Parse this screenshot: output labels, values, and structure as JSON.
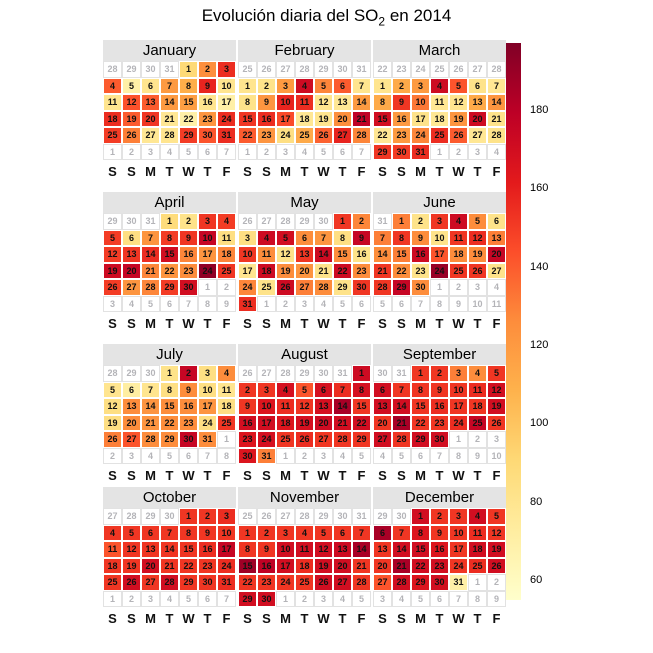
{
  "title": {
    "prefix": "Evolución diaria del SO",
    "sub": "2",
    "suffix": " en 2014"
  },
  "weekday_labels": [
    "S",
    "S",
    "M",
    "T",
    "W",
    "T",
    "F"
  ],
  "colorbar": {
    "ticks": [
      180,
      160,
      140,
      120,
      100,
      80,
      60
    ],
    "min": 55,
    "max": 197,
    "palette": [
      "#ffffcc",
      "#ffeda0",
      "#fed976",
      "#feb24c",
      "#fd8d3c",
      "#fc4e2a",
      "#e31a1c",
      "#bd0026",
      "#800026"
    ]
  },
  "chart_data": {
    "type": "heatmap",
    "title": "Evolución diaria del SO2 en 2014",
    "legend_position": "right",
    "value_range": [
      55,
      197
    ],
    "months": [
      {
        "name": "January",
        "prev_days": [
          28,
          29,
          30,
          31
        ],
        "next_days": [
          1,
          2,
          3,
          4,
          5,
          6,
          7
        ],
        "values": [
          90,
          125,
          155,
          140,
          70,
          80,
          120,
          110,
          158,
          80,
          80,
          143,
          140,
          120,
          118,
          80,
          70,
          155,
          140,
          152,
          78,
          70,
          122,
          155,
          150,
          130,
          78,
          80,
          150,
          142,
          155
        ]
      },
      {
        "name": "February",
        "prev_days": [
          25,
          26,
          27,
          28,
          29,
          30,
          31
        ],
        "next_days": [
          1,
          2,
          3,
          4,
          5,
          6,
          7
        ],
        "values": [
          80,
          82,
          120,
          172,
          128,
          140,
          80,
          82,
          122,
          158,
          155,
          80,
          78,
          120,
          152,
          155,
          145,
          78,
          80,
          125,
          178,
          140,
          122,
          85,
          112,
          138,
          158,
          128
        ]
      },
      {
        "name": "March",
        "prev_days": [
          22,
          23,
          24,
          25,
          26,
          27,
          28
        ],
        "next_days": [
          1,
          2,
          3,
          4
        ],
        "values": [
          80,
          112,
          120,
          172,
          142,
          82,
          78,
          112,
          152,
          132,
          78,
          80,
          112,
          122,
          170,
          120,
          82,
          78,
          122,
          172,
          82,
          78,
          120,
          128,
          155,
          140,
          78,
          82,
          152,
          150,
          155
        ]
      },
      {
        "name": "April",
        "prev_days": [
          29,
          30,
          31
        ],
        "next_days": [
          1,
          2,
          3,
          4,
          5,
          6,
          7,
          8,
          9
        ],
        "values": [
          88,
          82,
          152,
          150,
          150,
          85,
          122,
          150,
          152,
          175,
          85,
          150,
          152,
          155,
          170,
          128,
          122,
          128,
          172,
          175,
          128,
          122,
          126,
          192,
          152,
          150,
          122,
          128,
          150,
          170
        ]
      },
      {
        "name": "May",
        "prev_days": [
          26,
          27,
          28,
          29,
          30
        ],
        "next_days": [
          1,
          2,
          3,
          4,
          5,
          6
        ],
        "values": [
          152,
          128,
          85,
          172,
          170,
          126,
          122,
          85,
          175,
          152,
          126,
          82,
          152,
          172,
          126,
          82,
          80,
          172,
          126,
          122,
          82,
          172,
          126,
          128,
          82,
          172,
          130,
          126,
          82,
          152,
          155
        ]
      },
      {
        "name": "June",
        "prev_days": [
          31
        ],
        "next_days": [
          1,
          2,
          3,
          4,
          5,
          6,
          7,
          8,
          9,
          10,
          11
        ],
        "values": [
          130,
          82,
          152,
          172,
          126,
          82,
          130,
          152,
          126,
          82,
          152,
          155,
          130,
          126,
          130,
          172,
          142,
          126,
          126,
          175,
          152,
          126,
          82,
          190,
          152,
          152,
          82,
          152,
          175,
          126
        ]
      },
      {
        "name": "July",
        "prev_days": [
          28,
          29,
          30
        ],
        "next_days": [
          1,
          2,
          3,
          4,
          5,
          6,
          7,
          8
        ],
        "values": [
          82,
          175,
          85,
          126,
          80,
          72,
          80,
          85,
          126,
          85,
          80,
          85,
          126,
          122,
          126,
          126,
          122,
          85,
          85,
          126,
          122,
          126,
          126,
          85,
          152,
          130,
          142,
          126,
          126,
          175,
          126
        ]
      },
      {
        "name": "August",
        "prev_days": [
          26,
          27,
          28,
          29,
          30,
          31
        ],
        "next_days": [
          1,
          2,
          3,
          4,
          5
        ],
        "values": [
          172,
          152,
          152,
          168,
          142,
          168,
          155,
          168,
          152,
          165,
          155,
          152,
          168,
          185,
          152,
          170,
          170,
          165,
          168,
          172,
          170,
          170,
          165,
          168,
          152,
          155,
          152,
          152,
          152,
          165,
          130
        ]
      },
      {
        "name": "September",
        "prev_days": [
          30,
          31
        ],
        "next_days": [
          1,
          2,
          3,
          4,
          5,
          6,
          7,
          8,
          9,
          10
        ],
        "values": [
          152,
          152,
          130,
          126,
          152,
          170,
          152,
          152,
          152,
          152,
          155,
          170,
          170,
          170,
          152,
          155,
          152,
          152,
          170,
          152,
          185,
          152,
          152,
          155,
          175,
          152,
          170,
          152,
          170,
          170
        ]
      },
      {
        "name": "October",
        "prev_days": [
          27,
          28,
          29,
          30
        ],
        "next_days": [
          1,
          2,
          3,
          4,
          5,
          6,
          7
        ],
        "values": [
          152,
          152,
          155,
          152,
          152,
          152,
          152,
          152,
          152,
          152,
          142,
          152,
          152,
          152,
          152,
          155,
          175,
          152,
          152,
          170,
          152,
          152,
          152,
          155,
          152,
          170,
          152,
          170,
          152,
          152,
          155
        ]
      },
      {
        "name": "November",
        "prev_days": [
          25,
          26,
          27,
          28,
          29,
          30,
          31
        ],
        "next_days": [
          1,
          2,
          3,
          4,
          5
        ],
        "values": [
          152,
          152,
          152,
          152,
          152,
          152,
          152,
          152,
          152,
          170,
          170,
          170,
          172,
          185,
          188,
          178,
          170,
          155,
          170,
          170,
          152,
          152,
          152,
          152,
          152,
          170,
          170,
          152,
          170,
          170
        ]
      },
      {
        "name": "December",
        "prev_days": [
          29,
          30
        ],
        "next_days": [
          1,
          2,
          3,
          4,
          5,
          6,
          7,
          8,
          9
        ],
        "values": [
          170,
          152,
          152,
          170,
          152,
          185,
          152,
          165,
          152,
          152,
          155,
          152,
          152,
          170,
          170,
          165,
          152,
          170,
          170,
          152,
          185,
          170,
          170,
          152,
          155,
          170,
          142,
          170,
          165,
          170,
          70
        ]
      }
    ]
  }
}
